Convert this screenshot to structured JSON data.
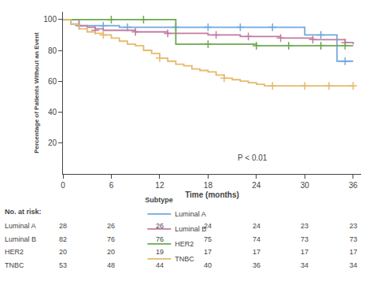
{
  "chart_data": {
    "type": "step",
    "xlabel": "Time (months)",
    "ylabel": "Percentage of Patients Without an Event",
    "xlim": [
      0,
      37
    ],
    "ylim": [
      0,
      105
    ],
    "xticks": [
      0,
      6,
      12,
      18,
      24,
      30,
      36
    ],
    "yticks": [
      20,
      40,
      60,
      80,
      100
    ],
    "grid": false,
    "legend": "lower left",
    "legend_title": "Subtype",
    "annotations": [
      "P < 0.01"
    ],
    "series": [
      {
        "name": "Luminal A",
        "color": "#6fa8dc",
        "marker": "plus",
        "x": [
          0,
          1,
          2,
          3,
          4,
          5,
          6,
          7,
          8,
          9,
          10,
          11,
          12,
          13,
          14,
          15,
          16,
          17,
          18,
          19,
          20,
          21,
          22,
          23,
          24,
          25,
          26,
          27,
          28,
          29,
          30,
          31,
          32,
          33,
          34,
          35,
          36
        ],
        "values": [
          100,
          97,
          96,
          96,
          96,
          96,
          96,
          95,
          95,
          95,
          95,
          95,
          95,
          95,
          95,
          95,
          95,
          95,
          95,
          95,
          95,
          95,
          95,
          95,
          95,
          95,
          95,
          95,
          95,
          95,
          90,
          90,
          90,
          90,
          73,
          73,
          73
        ],
        "censors_x": [
          2,
          5,
          8,
          14,
          18,
          22,
          26,
          32,
          35
        ],
        "censors_y": [
          96,
          96,
          95,
          95,
          95,
          95,
          95,
          90,
          73
        ]
      },
      {
        "name": "Luminal B",
        "color": "#c27ba0",
        "marker": "plus",
        "x": [
          0,
          1,
          2,
          3,
          4,
          5,
          6,
          7,
          8,
          9,
          10,
          11,
          12,
          13,
          14,
          15,
          16,
          17,
          18,
          19,
          20,
          21,
          22,
          23,
          24,
          25,
          26,
          27,
          28,
          29,
          30,
          31,
          32,
          33,
          34,
          35,
          36
        ],
        "values": [
          100,
          100,
          96,
          95,
          94,
          93,
          93,
          93,
          93,
          92,
          92,
          92,
          92,
          91,
          91,
          91,
          91,
          91,
          90,
          90,
          90,
          90,
          89,
          89,
          89,
          89,
          89,
          88,
          88,
          88,
          88,
          87,
          87,
          87,
          87,
          85,
          84
        ],
        "censors_x": [
          4,
          9,
          13,
          19,
          23,
          27,
          31,
          35
        ],
        "censors_y": [
          93,
          92,
          91,
          90,
          89,
          88,
          87,
          85
        ]
      },
      {
        "name": "HER2",
        "color": "#6aa84f",
        "marker": "plus",
        "x": [
          0,
          1,
          2,
          3,
          4,
          5,
          6,
          7,
          8,
          9,
          10,
          11,
          12,
          13,
          14,
          15,
          16,
          17,
          18,
          19,
          20,
          21,
          22,
          23,
          24,
          25,
          26,
          27,
          28,
          29,
          30,
          31,
          32,
          33,
          34,
          35,
          36
        ],
        "values": [
          100,
          100,
          100,
          100,
          100,
          100,
          100,
          100,
          100,
          100,
          100,
          100,
          100,
          100,
          84,
          84,
          84,
          84,
          84,
          84,
          84,
          84,
          84,
          84,
          83,
          83,
          83,
          83,
          83,
          83,
          83,
          83,
          83,
          83,
          83,
          83,
          83
        ],
        "censors_x": [
          6,
          10,
          18,
          24,
          28,
          32,
          35
        ],
        "censors_y": [
          100,
          100,
          84,
          83,
          83,
          83,
          83
        ]
      },
      {
        "name": "TNBC",
        "color": "#e6b96a",
        "marker": "plus",
        "x": [
          0,
          1,
          2,
          3,
          4,
          5,
          6,
          7,
          8,
          9,
          10,
          11,
          12,
          13,
          14,
          15,
          16,
          17,
          18,
          19,
          20,
          21,
          22,
          23,
          24,
          25,
          26,
          27,
          28,
          29,
          30,
          31,
          32,
          33,
          34,
          35,
          36
        ],
        "values": [
          100,
          97,
          94,
          92,
          91,
          90,
          88,
          86,
          84,
          83,
          80,
          78,
          75,
          73,
          71,
          70,
          68,
          67,
          66,
          64,
          62,
          61,
          60,
          59,
          58,
          57,
          57,
          57,
          57,
          57,
          57,
          57,
          57,
          57,
          57,
          57,
          57
        ],
        "censors_x": [
          5,
          12,
          20,
          26,
          30,
          33,
          36
        ],
        "censors_y": [
          90,
          75,
          62,
          57,
          57,
          57,
          57
        ]
      }
    ],
    "at_risk": {
      "title": "No. at risk:",
      "labels": [
        "Luminal A",
        "Luminal B",
        "HER2",
        "TNBC"
      ],
      "times": [
        0,
        6,
        12,
        18,
        24,
        30,
        36
      ],
      "values": [
        [
          28,
          26,
          26,
          24,
          24,
          23,
          23
        ],
        [
          82,
          76,
          76,
          75,
          74,
          73,
          73
        ],
        [
          20,
          20,
          19,
          17,
          17,
          17,
          17
        ],
        [
          53,
          48,
          44,
          40,
          36,
          34,
          34
        ]
      ]
    }
  }
}
